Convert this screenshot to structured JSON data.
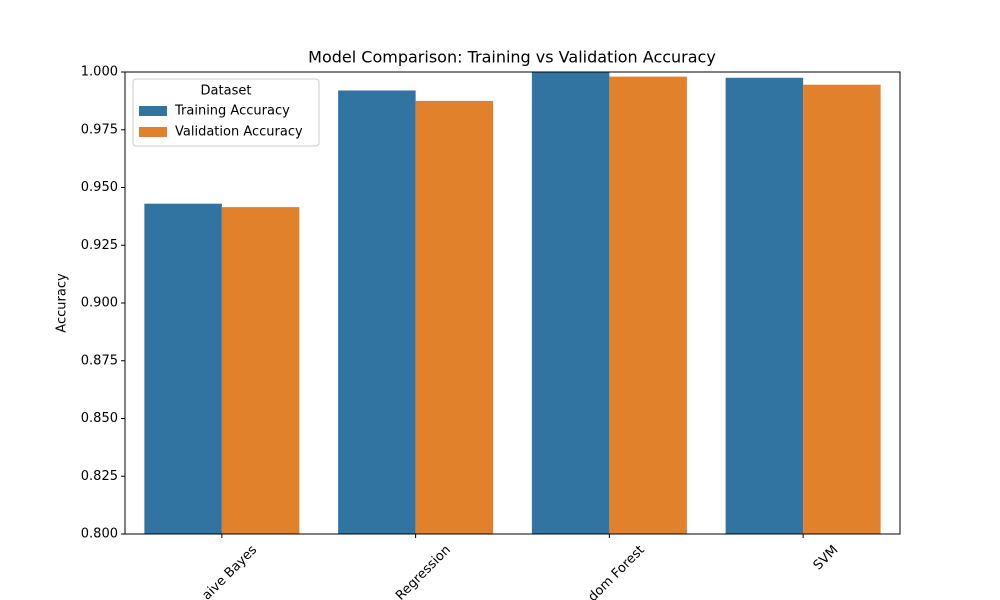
{
  "chart_data": {
    "type": "bar",
    "title": "Model Comparison: Training vs Validation Accuracy",
    "y_label": "Accuracy",
    "categories": [
      "aive Bayes",
      "Regression",
      "dom Forest",
      "SVM"
    ],
    "series": [
      {
        "name": "Training Accuracy",
        "color": "#3274a1",
        "values": [
          0.943,
          0.992,
          1.0,
          0.9975
        ]
      },
      {
        "name": "Validation Accuracy",
        "color": "#e1812c",
        "values": [
          0.9415,
          0.9875,
          0.998,
          0.9945
        ]
      }
    ],
    "legend_title": "Dataset",
    "legend_position": "upper left",
    "ylim": [
      0.8,
      1.0
    ],
    "yticks": [
      {
        "value": 0.8,
        "label": "0.800"
      },
      {
        "value": 0.825,
        "label": "0.825"
      },
      {
        "value": 0.85,
        "label": "0.850"
      },
      {
        "value": 0.875,
        "label": "0.875"
      },
      {
        "value": 0.9,
        "label": "0.900"
      },
      {
        "value": 0.925,
        "label": "0.925"
      },
      {
        "value": 0.95,
        "label": "0.950"
      },
      {
        "value": 0.975,
        "label": "0.975"
      },
      {
        "value": 1.0,
        "label": "1.000"
      }
    ],
    "grid": false
  }
}
